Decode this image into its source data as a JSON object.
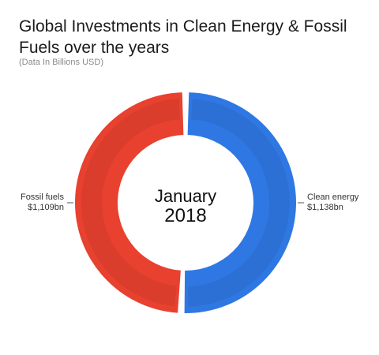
{
  "title": "Global Investments in Clean Energy & Fossil Fuels over the years",
  "subtitle": "(Data In Billions USD)",
  "chart_data": {
    "type": "pie",
    "variant": "donut",
    "center_month": "January",
    "center_year": "2018",
    "slices": [
      {
        "name": "Clean energy",
        "value": 1138,
        "label": "$1,138bn",
        "color": "#2f78e3",
        "side": "right"
      },
      {
        "name": "Fossil fuels",
        "value": 1109,
        "label": "$1,109bn",
        "color": "#e8412f",
        "side": "left"
      }
    ],
    "legend": "none"
  }
}
